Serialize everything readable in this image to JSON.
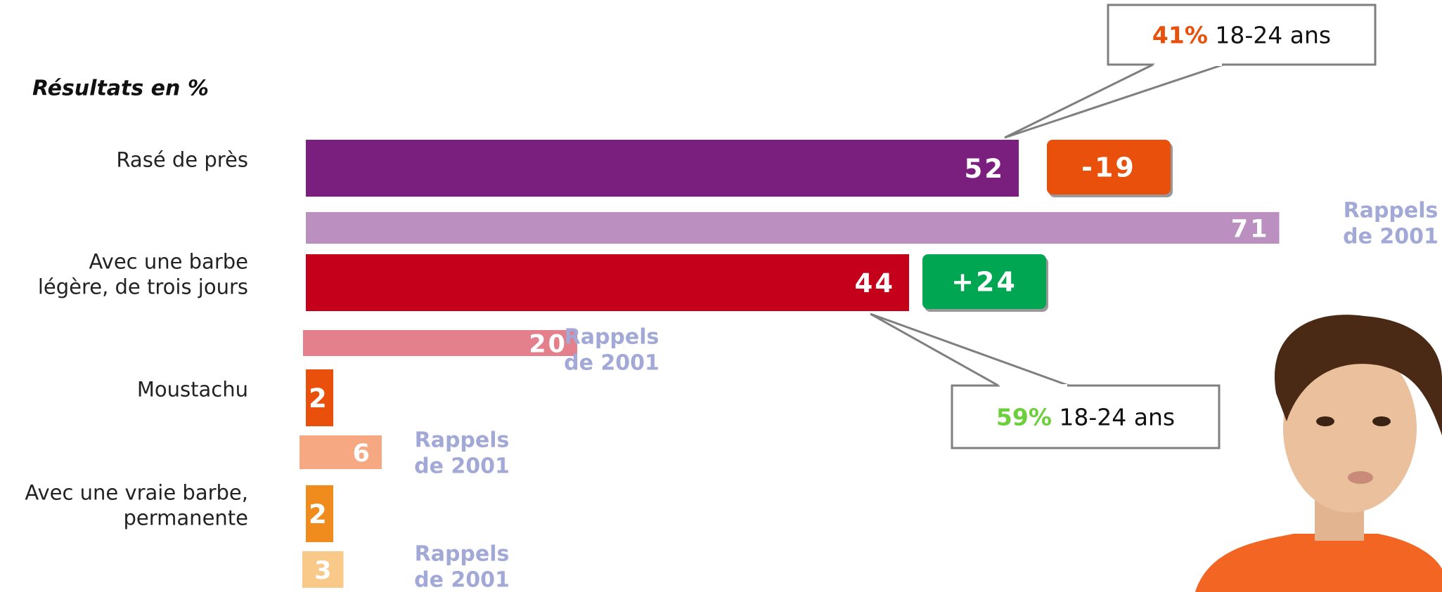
{
  "chart_data": {
    "type": "hbar",
    "title": "Résultats en %",
    "categories": [
      [
        "Rasé de près"
      ],
      [
        "Avec une barbe",
        "légère, de trois jours"
      ],
      [
        "Moustachu"
      ],
      [
        "Avec une vraie barbe,",
        "permanente"
      ]
    ],
    "values": [
      52,
      44,
      2,
      2
    ],
    "colors": [
      "#7a1f7e",
      "#c4001a",
      "#e8500c",
      "#f08c1e"
    ],
    "recall_label": [
      "Rappels",
      "de 2001"
    ],
    "recall_values": [
      71,
      20,
      6,
      3
    ],
    "recall_colors": [
      "#bb8fc0",
      "#e3808c",
      "#f5a882",
      "#f9c98a"
    ],
    "changes": [
      -19,
      {
        "value": 24,
        "label": "+24"
      }
    ],
    "change_colors": [
      "#e8500c",
      "#00a651"
    ],
    "annotations": [
      {
        "value": 41,
        "label": "41%",
        "text": "18-24 ans",
        "color": "#e8500c"
      },
      {
        "value": 59,
        "label": "59%",
        "text": "18-24 ans",
        "color": "#6ccf3c"
      }
    ]
  }
}
